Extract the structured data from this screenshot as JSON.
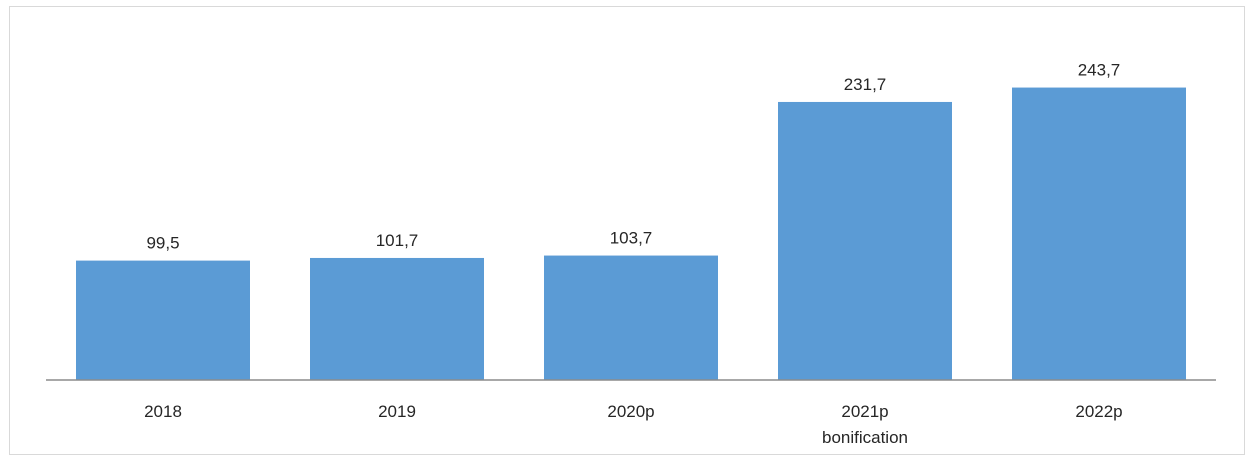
{
  "chart_data": {
    "type": "bar",
    "categories": [
      [
        "2018"
      ],
      [
        "2019"
      ],
      [
        "2020p"
      ],
      [
        "2021p",
        "bonification"
      ],
      [
        "2022p"
      ]
    ],
    "values": [
      99.5,
      101.7,
      103.7,
      231.7,
      243.7
    ],
    "value_labels": [
      "99,5",
      "101,7",
      "103,7",
      "231,7",
      "243,7"
    ],
    "title": "",
    "xlabel": "",
    "ylabel": "",
    "ylim": [
      0,
      260
    ],
    "bar_color": "#5b9bd5",
    "axis_color": "#8c8c8c",
    "grid": false,
    "legend": "none"
  }
}
